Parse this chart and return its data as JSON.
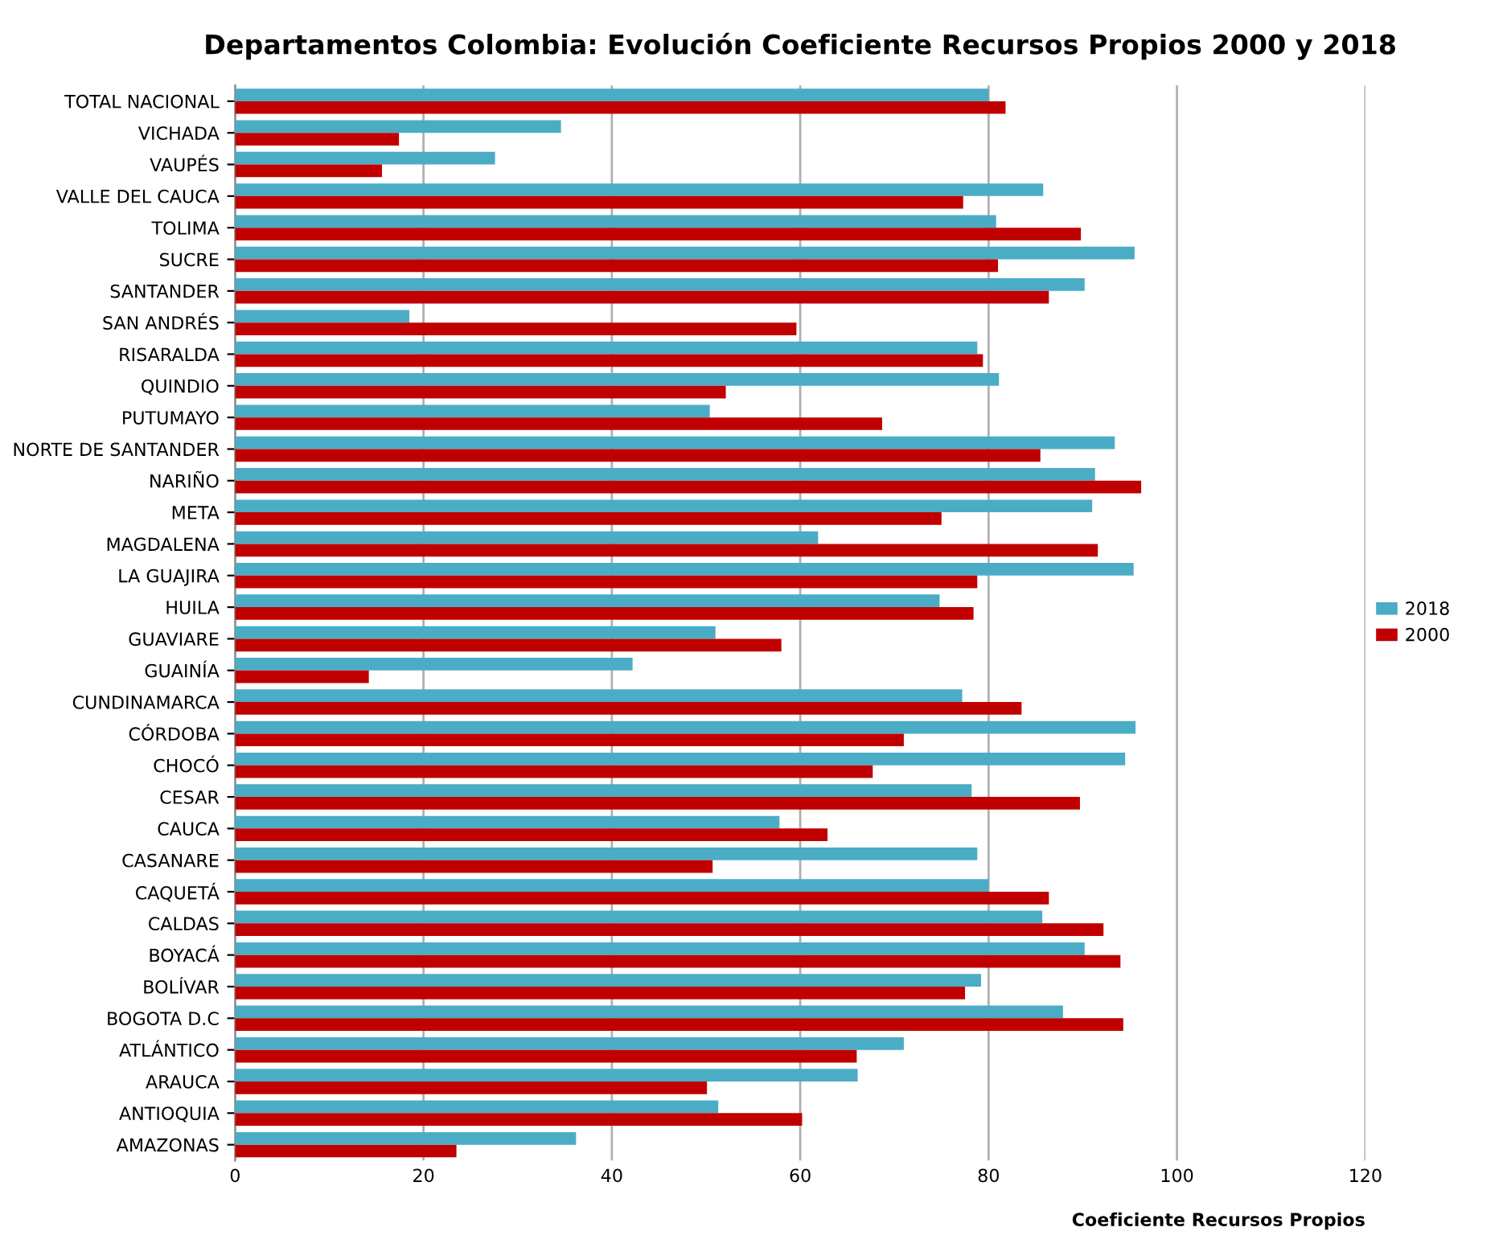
{
  "chart_data": {
    "type": "bar",
    "orientation": "horizontal",
    "title": "Departamentos Colombia: Evolución Coeficiente Recursos Propios 2000 y 2018",
    "xlabel": "Coeficiente Recursos Propios",
    "categories": [
      "TOTAL NACIONAL",
      "VICHADA",
      "VAUPÉS",
      "VALLE DEL CAUCA",
      "TOLIMA",
      "SUCRE",
      "SANTANDER",
      "SAN ANDRÉS",
      "RISARALDA",
      "QUINDIO",
      "PUTUMAYO",
      "NORTE DE SANTANDER",
      "NARIÑO",
      "META",
      "MAGDALENA",
      "LA GUAJIRA",
      "HUILA",
      "GUAVIARE",
      "GUAINÍA",
      "CUNDINAMARCA",
      "CÓRDOBA",
      "CHOCÓ",
      "CESAR",
      "CAUCA",
      "CASANARE",
      "CAQUETÁ",
      "CALDAS",
      "BOYACÁ",
      "BOLÍVAR",
      "BOGOTA D.C",
      "ATLÁNTICO",
      "ARAUCA",
      "ANTIOQUIA",
      "AMAZONAS"
    ],
    "series": [
      {
        "name": "2018",
        "color": "#4bacc6",
        "values": [
          80,
          34.6,
          27.6,
          85.8,
          80.8,
          95.5,
          90.2,
          18.5,
          78.8,
          81.1,
          50.4,
          93.4,
          91.3,
          91,
          61.9,
          95.4,
          74.8,
          51,
          42.2,
          77.2,
          95.6,
          94.5,
          78.2,
          57.8,
          78.8,
          80,
          85.7,
          90.2,
          79.2,
          87.9,
          71,
          66.1,
          51.3,
          36.2
        ]
      },
      {
        "name": "2000",
        "color": "#c00000",
        "values": [
          81.8,
          17.4,
          15.6,
          77.3,
          89.8,
          81,
          86.4,
          59.6,
          79.4,
          52.1,
          68.7,
          85.5,
          96.2,
          75,
          91.6,
          78.8,
          78.4,
          58,
          14.2,
          83.5,
          71,
          67.7,
          89.7,
          62.9,
          50.7,
          86.4,
          92.2,
          94,
          77.5,
          94.3,
          66,
          50.1,
          60.2,
          23.5
        ]
      }
    ],
    "xlim": [
      0,
      120
    ],
    "xticks": [
      0,
      20,
      40,
      60,
      80,
      100,
      120
    ],
    "grid": "x",
    "legend": "right"
  }
}
